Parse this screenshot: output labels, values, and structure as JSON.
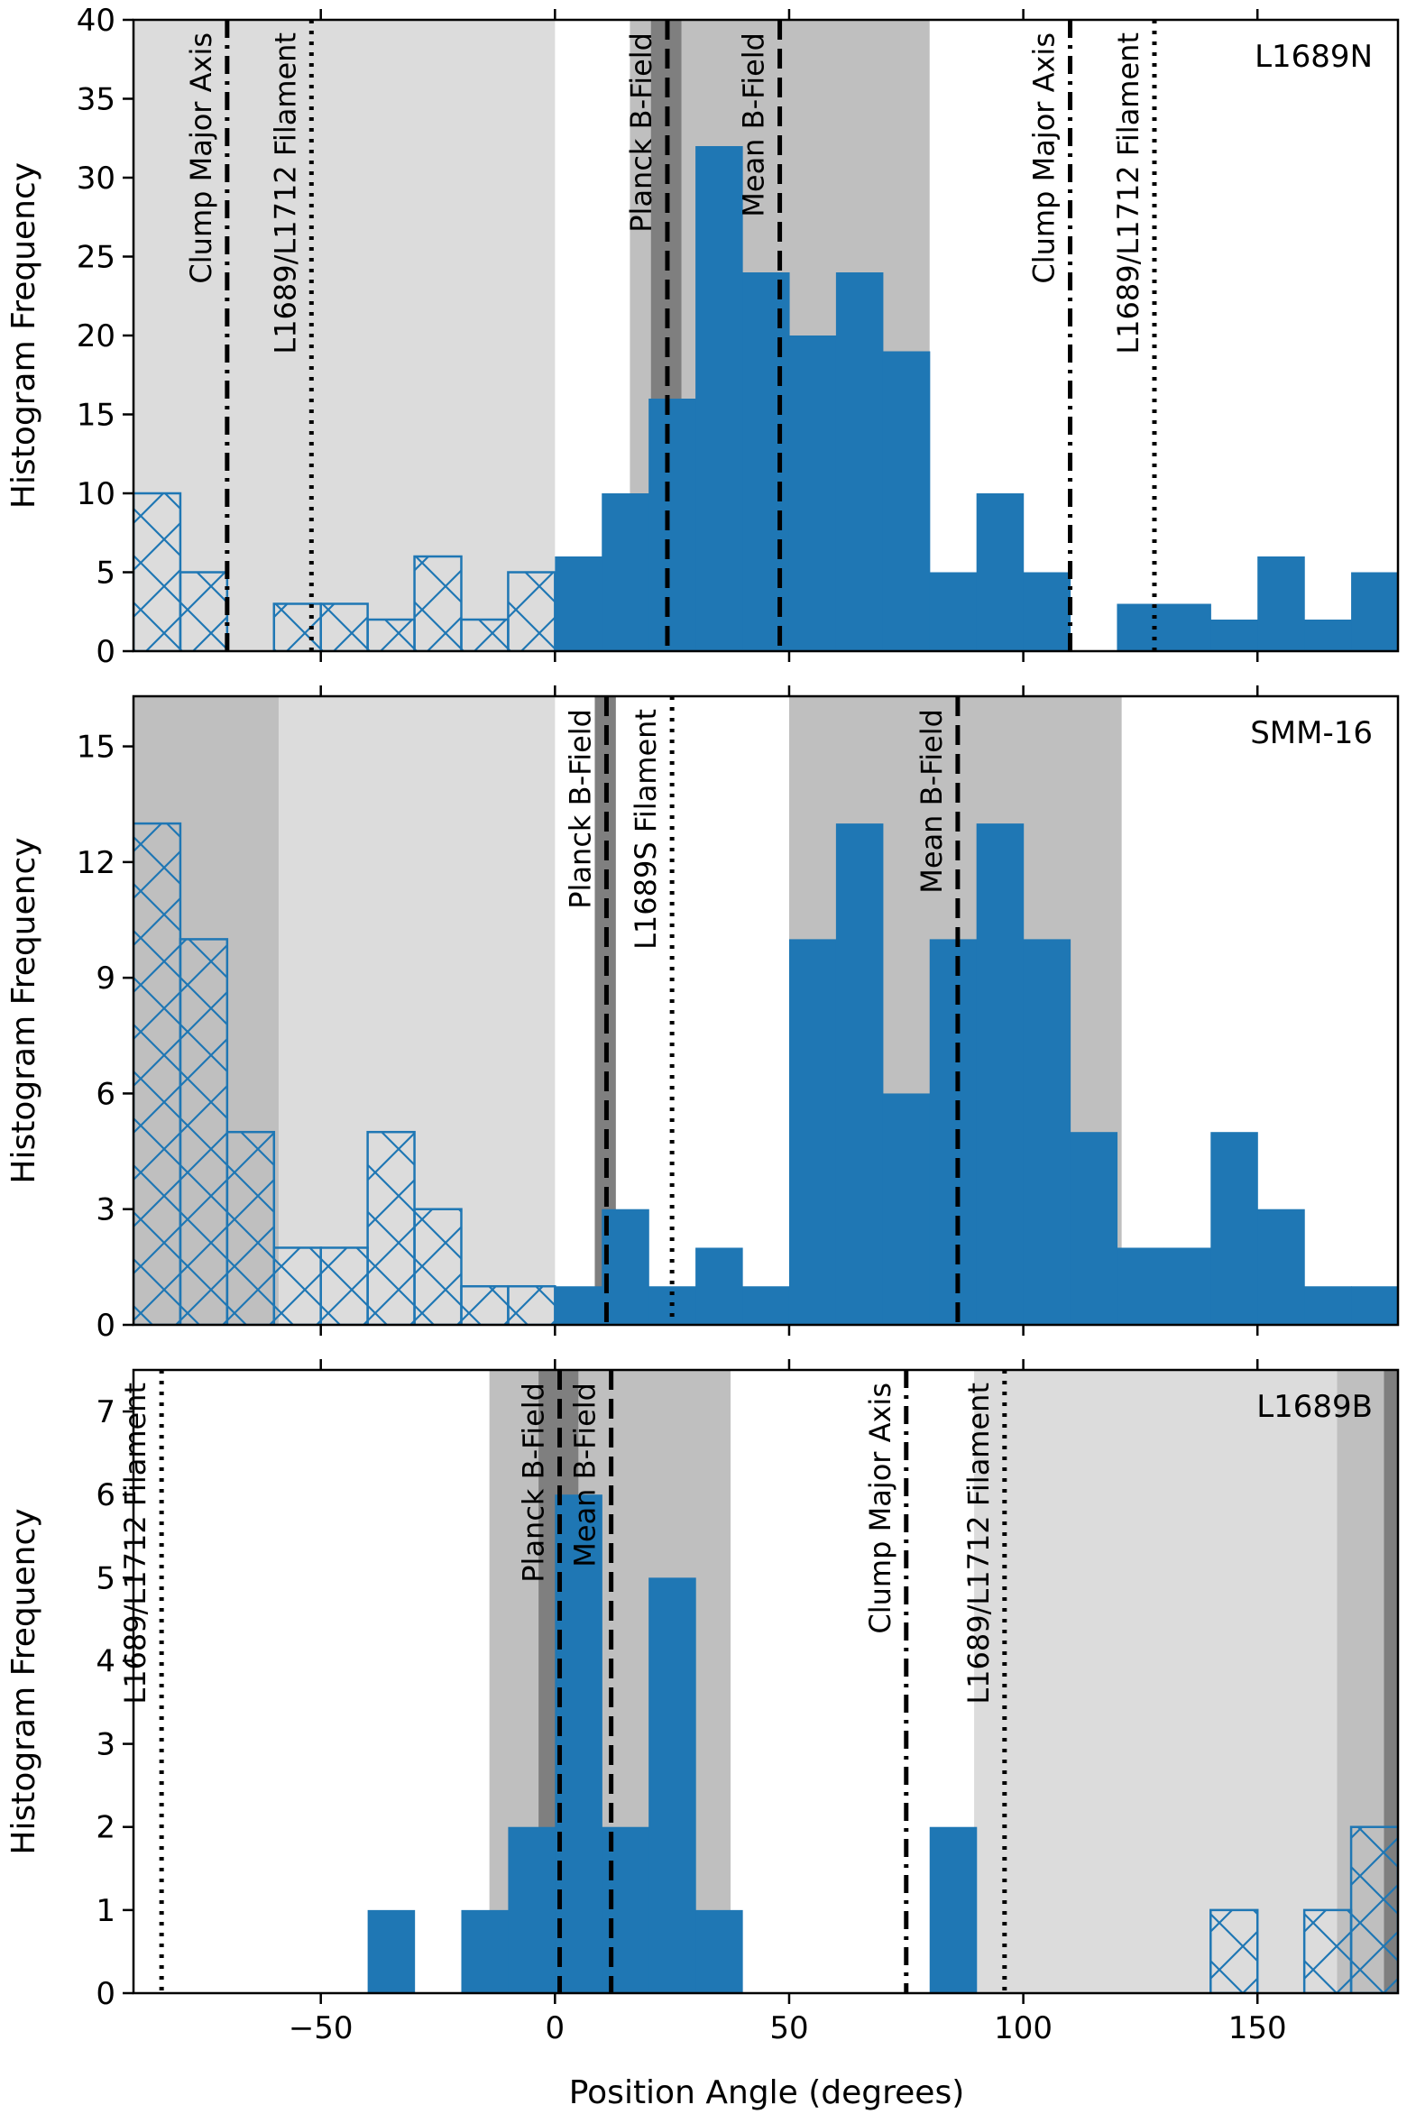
{
  "figure": {
    "xlabel": "Position Angle (degrees)",
    "xticks": [
      -50,
      0,
      50,
      100,
      150
    ],
    "xlim": [
      -90,
      180
    ]
  },
  "colors": {
    "bar": "#1f77b4",
    "light_band": "#dcdcdc",
    "mid_band": "#bfbfbf",
    "dark_band": "#7f7f7f",
    "line": "#000000"
  },
  "chart_data": [
    {
      "type": "bar",
      "title": "L1689N",
      "ylabel": "Histogram Frequency",
      "ylim": [
        0,
        40
      ],
      "yticks": [
        0,
        5,
        10,
        15,
        20,
        25,
        30,
        35,
        40
      ],
      "bin_width": 10,
      "bins": [
        {
          "x0": -90,
          "v": 10,
          "hatched": true
        },
        {
          "x0": -80,
          "v": 5,
          "hatched": true
        },
        {
          "x0": -70,
          "v": 0,
          "hatched": true
        },
        {
          "x0": -60,
          "v": 3,
          "hatched": true
        },
        {
          "x0": -50,
          "v": 3,
          "hatched": true
        },
        {
          "x0": -40,
          "v": 2,
          "hatched": true
        },
        {
          "x0": -30,
          "v": 6,
          "hatched": true
        },
        {
          "x0": -20,
          "v": 2,
          "hatched": true
        },
        {
          "x0": -10,
          "v": 5,
          "hatched": true
        },
        {
          "x0": 0,
          "v": 6,
          "hatched": false
        },
        {
          "x0": 10,
          "v": 10,
          "hatched": false
        },
        {
          "x0": 20,
          "v": 16,
          "hatched": false
        },
        {
          "x0": 30,
          "v": 32,
          "hatched": false
        },
        {
          "x0": 40,
          "v": 24,
          "hatched": false
        },
        {
          "x0": 50,
          "v": 20,
          "hatched": false
        },
        {
          "x0": 60,
          "v": 24,
          "hatched": false
        },
        {
          "x0": 70,
          "v": 19,
          "hatched": false
        },
        {
          "x0": 80,
          "v": 5,
          "hatched": false
        },
        {
          "x0": 90,
          "v": 10,
          "hatched": false
        },
        {
          "x0": 100,
          "v": 5,
          "hatched": false
        },
        {
          "x0": 110,
          "v": 0,
          "hatched": false
        },
        {
          "x0": 120,
          "v": 3,
          "hatched": false
        },
        {
          "x0": 130,
          "v": 3,
          "hatched": false
        },
        {
          "x0": 140,
          "v": 2,
          "hatched": false
        },
        {
          "x0": 150,
          "v": 6,
          "hatched": false
        },
        {
          "x0": 160,
          "v": 2,
          "hatched": false
        },
        {
          "x0": 170,
          "v": 5,
          "hatched": false
        }
      ],
      "bands": [
        {
          "from": -90,
          "to": 0,
          "shade": "light"
        },
        {
          "from": 16,
          "to": 80,
          "shade": "mid"
        },
        {
          "from": 20.5,
          "to": 27,
          "shade": "dark"
        }
      ],
      "lines": [
        {
          "x": -70,
          "style": "dashdot",
          "label": "Clump Major Axis"
        },
        {
          "x": -52,
          "style": "dotted",
          "label": "L1689/L1712 Filament"
        },
        {
          "x": 24,
          "style": "dashed",
          "label": "Planck B-Field"
        },
        {
          "x": 48,
          "style": "dashed",
          "label": "Mean B-Field"
        },
        {
          "x": 110,
          "style": "dashdot",
          "label": "Clump Major Axis"
        },
        {
          "x": 128,
          "style": "dotted",
          "label": "L1689/L1712 Filament"
        }
      ]
    },
    {
      "type": "bar",
      "title": "SMM-16",
      "ylabel": "Histogram Frequency",
      "ylim": [
        0,
        16.3
      ],
      "yticks": [
        0,
        3,
        6,
        9,
        12,
        15
      ],
      "bin_width": 10,
      "bins": [
        {
          "x0": -90,
          "v": 13,
          "hatched": true
        },
        {
          "x0": -80,
          "v": 10,
          "hatched": true
        },
        {
          "x0": -70,
          "v": 5,
          "hatched": true
        },
        {
          "x0": -60,
          "v": 2,
          "hatched": true
        },
        {
          "x0": -50,
          "v": 2,
          "hatched": true
        },
        {
          "x0": -40,
          "v": 5,
          "hatched": true
        },
        {
          "x0": -30,
          "v": 3,
          "hatched": true
        },
        {
          "x0": -20,
          "v": 1,
          "hatched": true
        },
        {
          "x0": -10,
          "v": 1,
          "hatched": true
        },
        {
          "x0": 0,
          "v": 1,
          "hatched": false
        },
        {
          "x0": 10,
          "v": 3,
          "hatched": false
        },
        {
          "x0": 20,
          "v": 1,
          "hatched": false
        },
        {
          "x0": 30,
          "v": 2,
          "hatched": false
        },
        {
          "x0": 40,
          "v": 1,
          "hatched": false
        },
        {
          "x0": 50,
          "v": 10,
          "hatched": false
        },
        {
          "x0": 60,
          "v": 13,
          "hatched": false
        },
        {
          "x0": 70,
          "v": 6,
          "hatched": false
        },
        {
          "x0": 80,
          "v": 10,
          "hatched": false
        },
        {
          "x0": 90,
          "v": 13,
          "hatched": false
        },
        {
          "x0": 100,
          "v": 10,
          "hatched": false
        },
        {
          "x0": 110,
          "v": 5,
          "hatched": false
        },
        {
          "x0": 120,
          "v": 2,
          "hatched": false
        },
        {
          "x0": 130,
          "v": 2,
          "hatched": false
        },
        {
          "x0": 140,
          "v": 5,
          "hatched": false
        },
        {
          "x0": 150,
          "v": 3,
          "hatched": false
        },
        {
          "x0": 160,
          "v": 1,
          "hatched": false
        },
        {
          "x0": 170,
          "v": 1,
          "hatched": false
        }
      ],
      "bands": [
        {
          "from": -90,
          "to": -59,
          "shade": "mid"
        },
        {
          "from": -59,
          "to": 0,
          "shade": "light"
        },
        {
          "from": 50,
          "to": 121,
          "shade": "mid"
        },
        {
          "from": 8.5,
          "to": 13,
          "shade": "dark"
        }
      ],
      "lines": [
        {
          "x": 11,
          "style": "dashed",
          "label": "Planck B-Field"
        },
        {
          "x": 25,
          "style": "dotted",
          "label": "L1689S Filament"
        },
        {
          "x": 86,
          "style": "dashed",
          "label": "Mean B-Field"
        }
      ]
    },
    {
      "type": "bar",
      "title": "L1689B",
      "ylabel": "Histogram Frequency",
      "ylim": [
        0,
        7.5
      ],
      "yticks": [
        0,
        1,
        2,
        3,
        4,
        5,
        6,
        7
      ],
      "bin_width": 10,
      "bins": [
        {
          "x0": -40,
          "v": 1,
          "hatched": false
        },
        {
          "x0": -20,
          "v": 1,
          "hatched": false
        },
        {
          "x0": -10,
          "v": 2,
          "hatched": false
        },
        {
          "x0": 0,
          "v": 6,
          "hatched": false
        },
        {
          "x0": 10,
          "v": 2,
          "hatched": false
        },
        {
          "x0": 20,
          "v": 5,
          "hatched": false
        },
        {
          "x0": 30,
          "v": 1,
          "hatched": false
        },
        {
          "x0": 80,
          "v": 2,
          "hatched": false
        },
        {
          "x0": 140,
          "v": 1,
          "hatched": true
        },
        {
          "x0": 160,
          "v": 1,
          "hatched": true
        },
        {
          "x0": 170,
          "v": 2,
          "hatched": true
        }
      ],
      "bands": [
        {
          "from": -14,
          "to": 37.5,
          "shade": "mid"
        },
        {
          "from": -3.5,
          "to": 5,
          "shade": "dark"
        },
        {
          "from": 89.5,
          "to": 167,
          "shade": "light"
        },
        {
          "from": 167,
          "to": 177,
          "shade": "mid"
        },
        {
          "from": 177,
          "to": 180,
          "shade": "dark"
        }
      ],
      "lines": [
        {
          "x": -84,
          "style": "dotted",
          "label": "L1689/L1712 Filament"
        },
        {
          "x": 1,
          "style": "dashed",
          "label": "Planck B-Field"
        },
        {
          "x": 12,
          "style": "dashed",
          "label": "Mean B-Field"
        },
        {
          "x": 75,
          "style": "dashdot",
          "label": "Clump Major Axis"
        },
        {
          "x": 96,
          "style": "dotted",
          "label": "L1689/L1712 Filament"
        }
      ]
    }
  ]
}
